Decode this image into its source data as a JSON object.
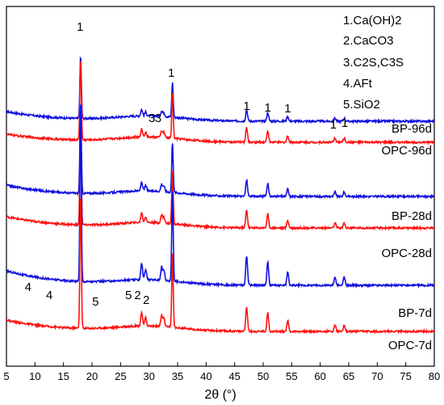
{
  "chart_data": {
    "type": "line",
    "xlabel": "2θ (°)",
    "ylabel": "",
    "xlim": [
      5,
      80
    ],
    "x_ticks": [
      5,
      10,
      15,
      20,
      25,
      30,
      35,
      40,
      45,
      50,
      55,
      60,
      65,
      70,
      75,
      80
    ],
    "x_tick_labels": [
      "5",
      "10",
      "15",
      "20",
      "25",
      "30",
      "35",
      "40",
      "45",
      "50",
      "55",
      "60",
      "65",
      "70",
      "75",
      "80"
    ],
    "y_ticks_shown": false,
    "grid": false,
    "legend_entries": [
      "1.Ca(OH)2",
      "2.CaCO3",
      "3.C2S,C3S",
      "4.AFt",
      "5.SiO2"
    ],
    "legend_placement": "top-right",
    "colors": {
      "blue": "#1010e0",
      "red": "#ff1010"
    },
    "series": [
      {
        "name": "BP-96d",
        "color": "#1010e0",
        "baseline_rel": 0.8
      },
      {
        "name": "OPC-96d",
        "color": "#ff1010",
        "baseline_rel": 0.0
      },
      {
        "name": "BP-28d",
        "color": "#1010e0",
        "baseline_rel": 0.8
      },
      {
        "name": "OPC-28d",
        "color": "#ff1010",
        "baseline_rel": 0.0
      },
      {
        "name": "BP-7d",
        "color": "#1010e0",
        "baseline_rel": 1.0
      },
      {
        "name": "OPC-7d",
        "color": "#ff1010",
        "baseline_rel": 0.0
      }
    ],
    "peaks": [
      {
        "x": 18.0,
        "h": 100
      },
      {
        "x": 28.7,
        "h": 10
      },
      {
        "x": 29.4,
        "h": 6
      },
      {
        "x": 32.2,
        "h": 8
      },
      {
        "x": 32.6,
        "h": 6
      },
      {
        "x": 34.1,
        "h": 55
      },
      {
        "x": 47.1,
        "h": 18
      },
      {
        "x": 50.8,
        "h": 14
      },
      {
        "x": 54.3,
        "h": 8
      },
      {
        "x": 62.6,
        "h": 5
      },
      {
        "x": 64.2,
        "h": 5
      }
    ],
    "peak_annotations": [
      {
        "x": 17.9,
        "series": "BP-96d",
        "label": "1"
      },
      {
        "x": 33.9,
        "series": "BP-96d",
        "label": "1"
      },
      {
        "x": 47.1,
        "series": "BP-96d",
        "label": "1"
      },
      {
        "x": 50.8,
        "series": "BP-96d",
        "label": "1"
      },
      {
        "x": 54.3,
        "series": "BP-96d",
        "label": "1"
      },
      {
        "x": 62.3,
        "series": "BP-96d",
        "label": "1"
      },
      {
        "x": 64.3,
        "series": "BP-96d",
        "label": "1"
      },
      {
        "x": 30.5,
        "series": "BP-96d",
        "label": "3"
      },
      {
        "x": 31.6,
        "series": "BP-96d",
        "label": "3"
      },
      {
        "x": 8.8,
        "series": "BP-7d",
        "label": "4"
      },
      {
        "x": 12.5,
        "series": "BP-7d",
        "label": "4"
      },
      {
        "x": 20.6,
        "series": "BP-7d",
        "label": "5"
      },
      {
        "x": 26.4,
        "series": "BP-7d",
        "label": "5"
      },
      {
        "x": 28.0,
        "series": "BP-7d",
        "label": "2"
      },
      {
        "x": 29.5,
        "series": "BP-7d",
        "label": "2"
      }
    ]
  }
}
